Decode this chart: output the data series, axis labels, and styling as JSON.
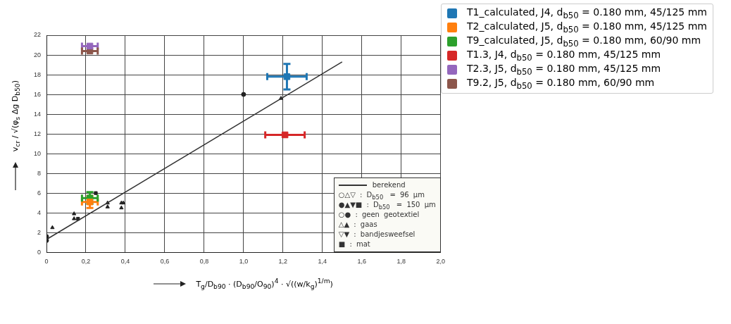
{
  "chart_data": {
    "type": "scatter",
    "xlabel": "T$_{g}$/D$_{b90}$ · (D$_{b90}$/O$_{90}$)$^{4}$ · √((w/k$_{g}$)$^{1/m}$)",
    "ylabel": "v$_{cr}$ / √(φ$_{s}$ Δg D$_{b50}$)",
    "xlim": [
      0,
      2.0
    ],
    "xticks": [
      0,
      {
        "value": 0.2,
        "label": "0,2"
      },
      {
        "value": 0.4,
        "label": "0,4"
      },
      {
        "value": 0.6,
        "label": "0,6"
      },
      {
        "value": 0.8,
        "label": "0,8"
      },
      {
        "value": 1.0,
        "label": "1,0"
      },
      {
        "value": 1.2,
        "label": "1,2"
      },
      {
        "value": 1.4,
        "label": "1,4"
      },
      {
        "value": 1.6,
        "label": "1,6"
      },
      {
        "value": 1.8,
        "label": "1,8"
      },
      {
        "value": 2.0,
        "label": "2,0"
      }
    ],
    "ylim": [
      0,
      22
    ],
    "yticks": [
      0,
      2,
      4,
      6,
      8,
      10,
      12,
      14,
      16,
      18,
      20,
      22
    ],
    "grid": true,
    "legend": "top right",
    "series": [
      {
        "name": "T1_calculated, J4, d$_{b50}$ = 0.180 mm, 45/125 mm",
        "color": "#1f77b4",
        "marker": "square",
        "x": [
          1.22
        ],
        "values": [
          17.8
        ],
        "errors": [
          1.3
        ],
        "xerrors": [
          0.1
        ]
      },
      {
        "name": "T2_calculated, J5, d$_{b50}$ = 0.180 mm, 45/125 mm",
        "color": "#ff7f0e",
        "marker": "square",
        "x": [
          0.22
        ],
        "values": [
          5.1
        ],
        "errors": [
          0.6
        ],
        "xerrors": [
          0.04
        ]
      },
      {
        "name": "T9_calculated, J5, d$_{b50}$ = 0.180 mm, 60/90 mm",
        "color": "#2ca02c",
        "marker": "square",
        "x": [
          0.22
        ],
        "values": [
          5.5
        ],
        "errors": [
          0.6
        ],
        "xerrors": [
          0.04
        ]
      },
      {
        "name": "T1.3, J4, d$_{b50}$ = 0.180 mm, 45/125 mm",
        "color": "#d62728",
        "marker": "square",
        "x": [
          1.21
        ],
        "values": [
          11.9
        ],
        "xerrors": [
          0.1
        ]
      },
      {
        "name": "T2.3, J5, d$_{b50}$ = 0.180 mm, 45/125 mm",
        "color": "#9467bd",
        "marker": "square",
        "x": [
          0.22
        ],
        "values": [
          20.9
        ],
        "xerrors": [
          0.04
        ]
      },
      {
        "name": "T9.2, J5, d$_{b50}$ = 0.180 mm, 60/90 mm",
        "color": "#8c564b",
        "marker": "square",
        "x": [
          0.22
        ],
        "values": [
          20.4
        ],
        "xerrors": [
          0.04
        ]
      },
      {
        "name": "berekend",
        "type": "line",
        "color": "#333333",
        "marker": "none",
        "x": [
          0,
          1.5
        ],
        "values": [
          1.3,
          19.3
        ]
      },
      {
        "color": "#222222",
        "marker": "circle",
        "x": [
          0,
          0,
          1.0
        ],
        "values": [
          1.2,
          1.6,
          16.0
        ]
      },
      {
        "color": "#222222",
        "marker": "triangle",
        "x": [
          0.03,
          0.14,
          0.14,
          0.31,
          0.31,
          0.38,
          0.38,
          0.39,
          1.19
        ],
        "values": [
          2.5,
          3.9,
          3.4,
          5.0,
          4.6,
          5.0,
          4.5,
          5.0,
          15.6
        ]
      },
      {
        "color": "#222222",
        "marker": "square",
        "x": [
          0.16,
          0.25
        ],
        "values": [
          3.4,
          6.0
        ]
      }
    ],
    "annotations": [
      "○△▽ : D$_{b50}$ = 96 µm",
      "●▲▼■ : D$_{b50}$ = 150 µm",
      "○● : geen geotextiel",
      "△▲ : gaas",
      "▽▼ : bandjesweefsel",
      "■ : mat"
    ]
  }
}
